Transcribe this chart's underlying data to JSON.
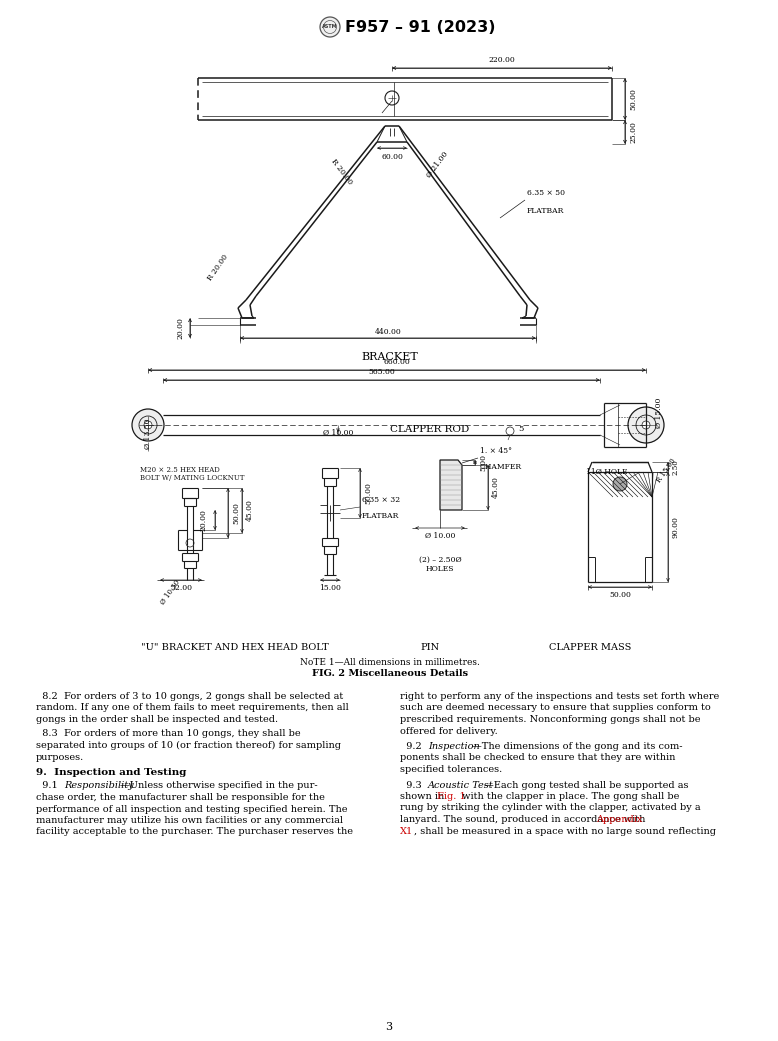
{
  "title": "F957 – 91 (2023)",
  "bg_color": "#ffffff",
  "dc": "#1a1a1a",
  "red_color": "#cc0000",
  "page_number": "3",
  "bracket_label": "BRACKET",
  "clapper_rod_label": "CLAPPER ROD",
  "note_line": "NᴏTE 1—All dimensions in millimetres.",
  "fig_caption": "FIG. 2 Miscellaneous Details",
  "sec_left": "\"U\" BRACKET AND HEX HEAD BOLT",
  "sec_mid": "PIN",
  "sec_right": "CLAPPER MASS",
  "p82_lines": [
    "  8.2  For orders of 3 to 10 gongs, 2 gongs shall be selected at",
    "random. If any one of them fails to meet requirements, then all",
    "gongs in the order shall be inspected and tested."
  ],
  "p83_lines": [
    "  8.3  For orders of more than 10 gongs, they shall be",
    "separated into groups of 10 (or fraction thereof) for sampling",
    "purposes."
  ],
  "sec9_heading": "9.  Inspection and Testing",
  "p91_lines": [
    "chase order, the manufacturer shall be responsible for the",
    "performance of all inspection and testing specified herein. The",
    "manufacturer may utilize his own facilities or any commercial",
    "facility acceptable to the purchaser. The purchaser reserves the"
  ],
  "r_col_lines": [
    "right to perform any of the inspections and tests set forth where",
    "such are deemed necessary to ensure that supplies conform to",
    "prescribed requirements. Nonconforming gongs shall not be",
    "offered for delivery."
  ],
  "p92_cont": [
    "ponents shall be checked to ensure that they are within",
    "specified tolerances."
  ],
  "p93_line2": "shown in ",
  "p93_line2b": "Fig. 1",
  "p93_line2c": " with the clapper in place. The gong shall be",
  "p93_line3": "rung by striking the cylinder with the clapper, activated by a",
  "p93_line4": "lanyard. The sound, produced in accordance with ",
  "p93_line4b": "Appendix",
  "p93_line5a": "X1",
  "p93_line5b": ", shall be measured in a space with no large sound reflecting"
}
